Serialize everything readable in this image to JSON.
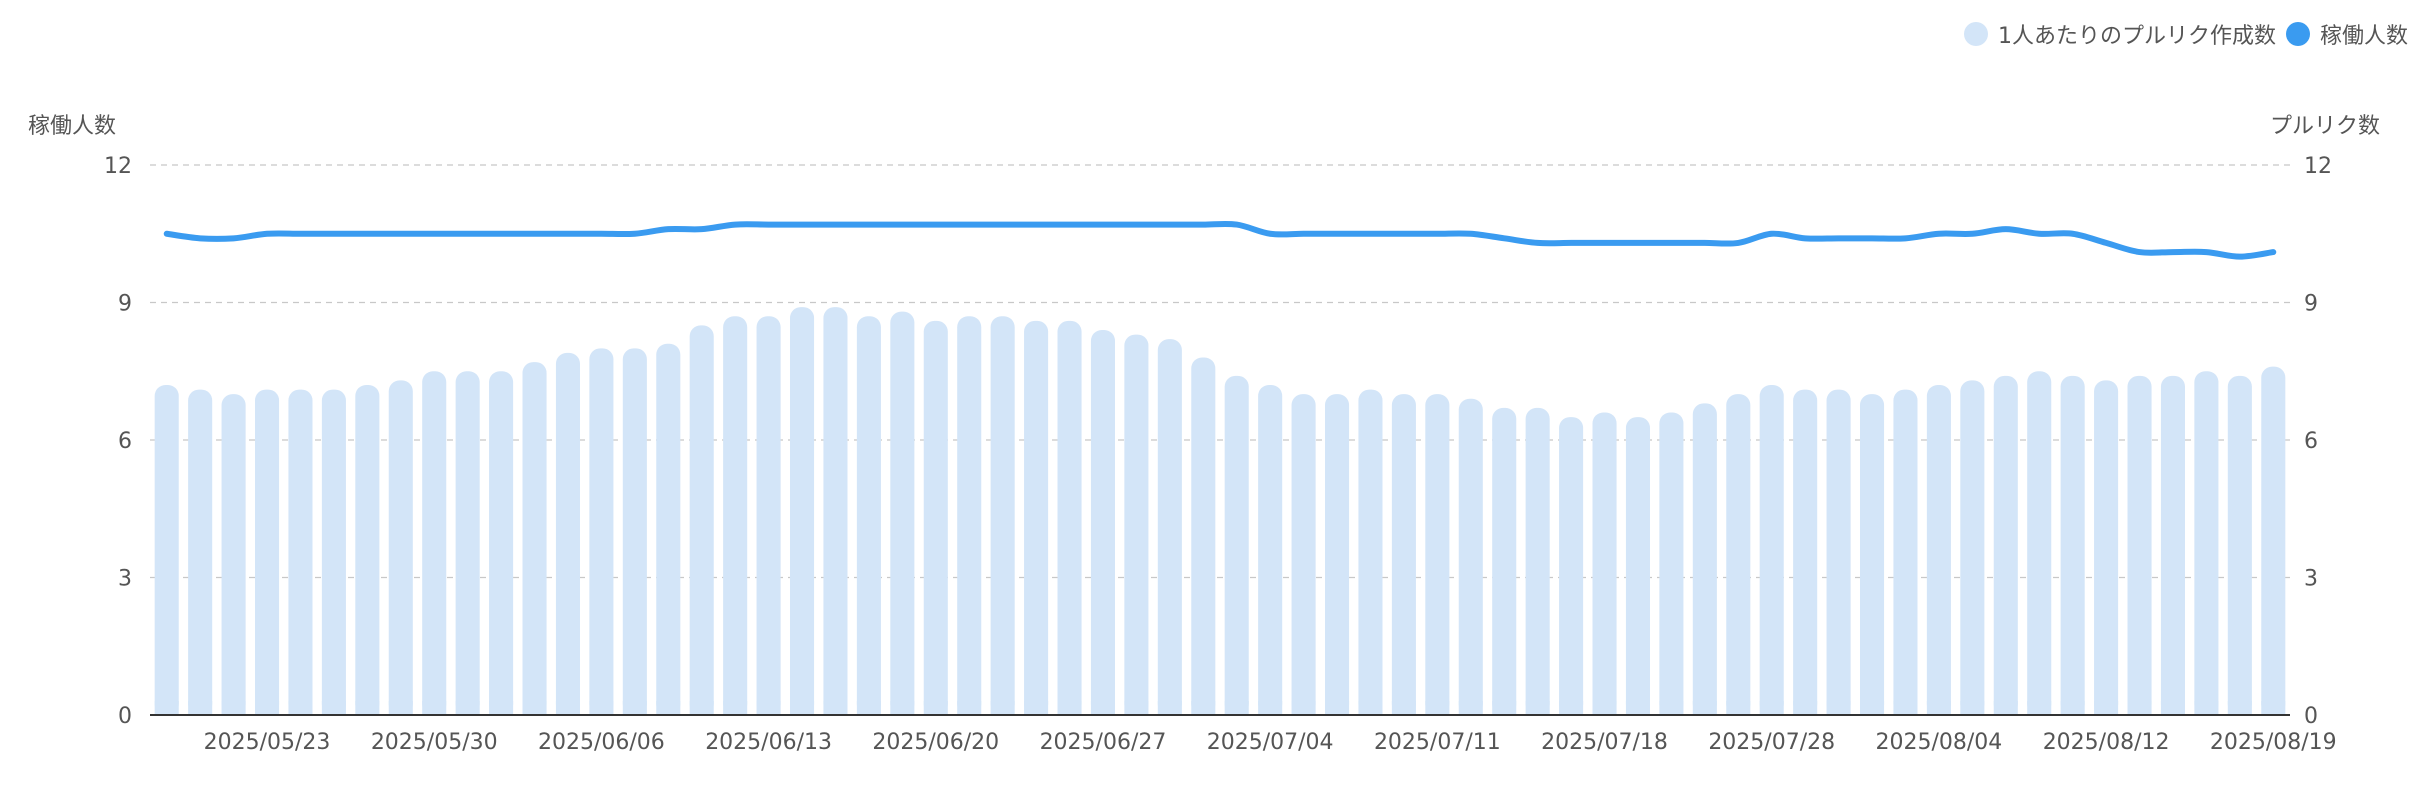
{
  "legend": {
    "bar_label": "1人あたりのプルリク作成数",
    "line_label": "稼働人数"
  },
  "colors": {
    "bar": "#d3e5f8",
    "line": "#3a9bf0",
    "grid": "#c8c8c8",
    "axis": "#333333",
    "text": "#555555"
  },
  "chart_data": {
    "type": "bar+line",
    "y_left_label": "稼働人数",
    "y_right_label": "プルリク数",
    "ylim": [
      0,
      12
    ],
    "yticks": [
      0,
      3,
      6,
      9,
      12
    ],
    "grid": true,
    "legend_position": "top-right",
    "x_tick_labels": [
      "2025/05/23",
      "2025/05/30",
      "2025/06/06",
      "2025/06/13",
      "2025/06/20",
      "2025/06/27",
      "2025/07/04",
      "2025/07/11",
      "2025/07/18",
      "2025/07/28",
      "2025/08/04",
      "2025/08/12",
      "2025/08/19"
    ],
    "x_tick_indices": [
      3,
      8,
      13,
      18,
      23,
      28,
      33,
      38,
      43,
      48,
      53,
      58,
      63
    ],
    "series": [
      {
        "name": "1人あたりのプルリク作成数",
        "type": "bar",
        "values": [
          7.2,
          7.1,
          7.0,
          7.1,
          7.1,
          7.1,
          7.2,
          7.3,
          7.5,
          7.5,
          7.5,
          7.7,
          7.9,
          8.0,
          8.0,
          8.1,
          8.5,
          8.7,
          8.7,
          8.9,
          8.9,
          8.7,
          8.8,
          8.6,
          8.7,
          8.7,
          8.6,
          8.6,
          8.4,
          8.3,
          8.2,
          7.8,
          7.4,
          7.2,
          7.0,
          7.0,
          7.1,
          7.0,
          7.0,
          6.9,
          6.7,
          6.7,
          6.5,
          6.6,
          6.5,
          6.6,
          6.8,
          7.0,
          7.2,
          7.1,
          7.1,
          7.0,
          7.1,
          7.2,
          7.3,
          7.4,
          7.5,
          7.4,
          7.3,
          7.4,
          7.4,
          7.5,
          7.4,
          7.6
        ]
      },
      {
        "name": "稼働人数",
        "type": "line",
        "values": [
          10.5,
          10.4,
          10.4,
          10.5,
          10.5,
          10.5,
          10.5,
          10.5,
          10.5,
          10.5,
          10.5,
          10.5,
          10.5,
          10.5,
          10.5,
          10.6,
          10.6,
          10.7,
          10.7,
          10.7,
          10.7,
          10.7,
          10.7,
          10.7,
          10.7,
          10.7,
          10.7,
          10.7,
          10.7,
          10.7,
          10.7,
          10.7,
          10.7,
          10.5,
          10.5,
          10.5,
          10.5,
          10.5,
          10.5,
          10.5,
          10.4,
          10.3,
          10.3,
          10.3,
          10.3,
          10.3,
          10.3,
          10.3,
          10.5,
          10.4,
          10.4,
          10.4,
          10.4,
          10.5,
          10.5,
          10.6,
          10.5,
          10.5,
          10.3,
          10.1,
          10.1,
          10.1,
          10.0,
          10.1
        ]
      }
    ]
  }
}
